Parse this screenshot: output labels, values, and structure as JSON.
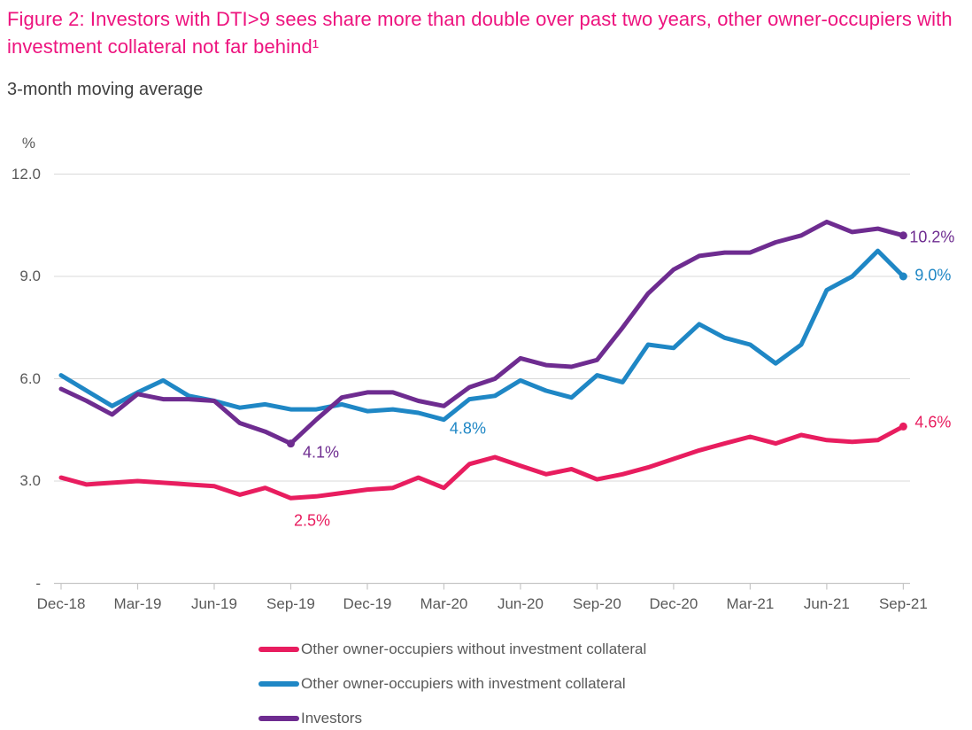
{
  "title": "Figure 2:  Investors with DTI>9 sees share more than double over past two years, other owner-occupiers with investment collateral not far behind¹",
  "subtitle": "3-month moving average",
  "title_color": "#ed137e",
  "chart_data": {
    "type": "line",
    "unit_label": "%",
    "grid": true,
    "legend_position": "bottom",
    "ylim": [
      0,
      12
    ],
    "yticks": [
      {
        "value": 12,
        "label": "12.0"
      },
      {
        "value": 9,
        "label": "9.0"
      },
      {
        "value": 6,
        "label": "6.0"
      },
      {
        "value": 3,
        "label": "3.0"
      },
      {
        "value": 0,
        "label": "-"
      }
    ],
    "x": [
      "Dec-18",
      "Jan-19",
      "Feb-19",
      "Mar-19",
      "Apr-19",
      "May-19",
      "Jun-19",
      "Jul-19",
      "Aug-19",
      "Sep-19",
      "Oct-19",
      "Nov-19",
      "Dec-19",
      "Jan-20",
      "Feb-20",
      "Mar-20",
      "Apr-20",
      "May-20",
      "Jun-20",
      "Jul-20",
      "Aug-20",
      "Sep-20",
      "Oct-20",
      "Nov-20",
      "Dec-20",
      "Jan-21",
      "Feb-21",
      "Mar-21",
      "Apr-21",
      "May-21",
      "Jun-21",
      "Jul-21",
      "Aug-21",
      "Sep-21"
    ],
    "x_tick_labels": [
      "Dec-18",
      "Mar-19",
      "Jun-19",
      "Sep-19",
      "Dec-19",
      "Mar-20",
      "Jun-20",
      "Sep-20",
      "Dec-20",
      "Mar-21",
      "Jun-21",
      "Sep-21"
    ],
    "series": [
      {
        "name": "Other owner-occupiers without investment collateral",
        "color": "#e81d5f",
        "values": [
          3.1,
          2.9,
          2.95,
          3.0,
          2.95,
          2.9,
          2.85,
          2.6,
          2.8,
          2.5,
          2.55,
          2.65,
          2.75,
          2.8,
          3.1,
          2.8,
          3.5,
          3.7,
          3.45,
          3.2,
          3.35,
          3.05,
          3.2,
          3.4,
          3.65,
          3.9,
          4.1,
          4.3,
          4.1,
          4.35,
          4.2,
          4.15,
          4.2,
          4.6
        ]
      },
      {
        "name": "Other owner-occupiers with investment collateral",
        "color": "#1f87c5",
        "values": [
          6.1,
          5.65,
          5.2,
          5.6,
          5.95,
          5.5,
          5.35,
          5.15,
          5.25,
          5.1,
          5.1,
          5.25,
          5.05,
          5.1,
          5.0,
          4.8,
          5.4,
          5.5,
          5.95,
          5.65,
          5.45,
          6.1,
          5.9,
          7.0,
          6.9,
          7.6,
          7.2,
          7.0,
          6.45,
          7.0,
          8.6,
          9.0,
          9.75,
          9.0
        ]
      },
      {
        "name": "Investors",
        "color": "#6e2c90",
        "values": [
          5.7,
          5.35,
          4.95,
          5.55,
          5.4,
          5.4,
          5.35,
          4.7,
          4.45,
          4.1,
          4.8,
          5.45,
          5.6,
          5.6,
          5.35,
          5.2,
          5.75,
          6.0,
          6.6,
          6.4,
          6.35,
          6.55,
          7.5,
          8.5,
          9.2,
          9.6,
          9.7,
          9.7,
          10.0,
          10.2,
          10.6,
          10.3,
          10.4,
          10.2
        ]
      }
    ],
    "annotations": [
      {
        "text": "2.5%",
        "month_index": 9,
        "value": 2.5,
        "series": 0
      },
      {
        "text": "4.1%",
        "month_index": 9,
        "value": 4.1,
        "series": 2
      },
      {
        "text": "4.8%",
        "month_index": 15,
        "value": 4.8,
        "series": 1
      },
      {
        "text": "10.2%",
        "month_index": 33,
        "value": 10.2,
        "series": 2
      },
      {
        "text": "9.0%",
        "month_index": 33,
        "value": 9.0,
        "series": 1
      },
      {
        "text": "4.6%",
        "month_index": 33,
        "value": 4.6,
        "series": 0
      }
    ]
  }
}
